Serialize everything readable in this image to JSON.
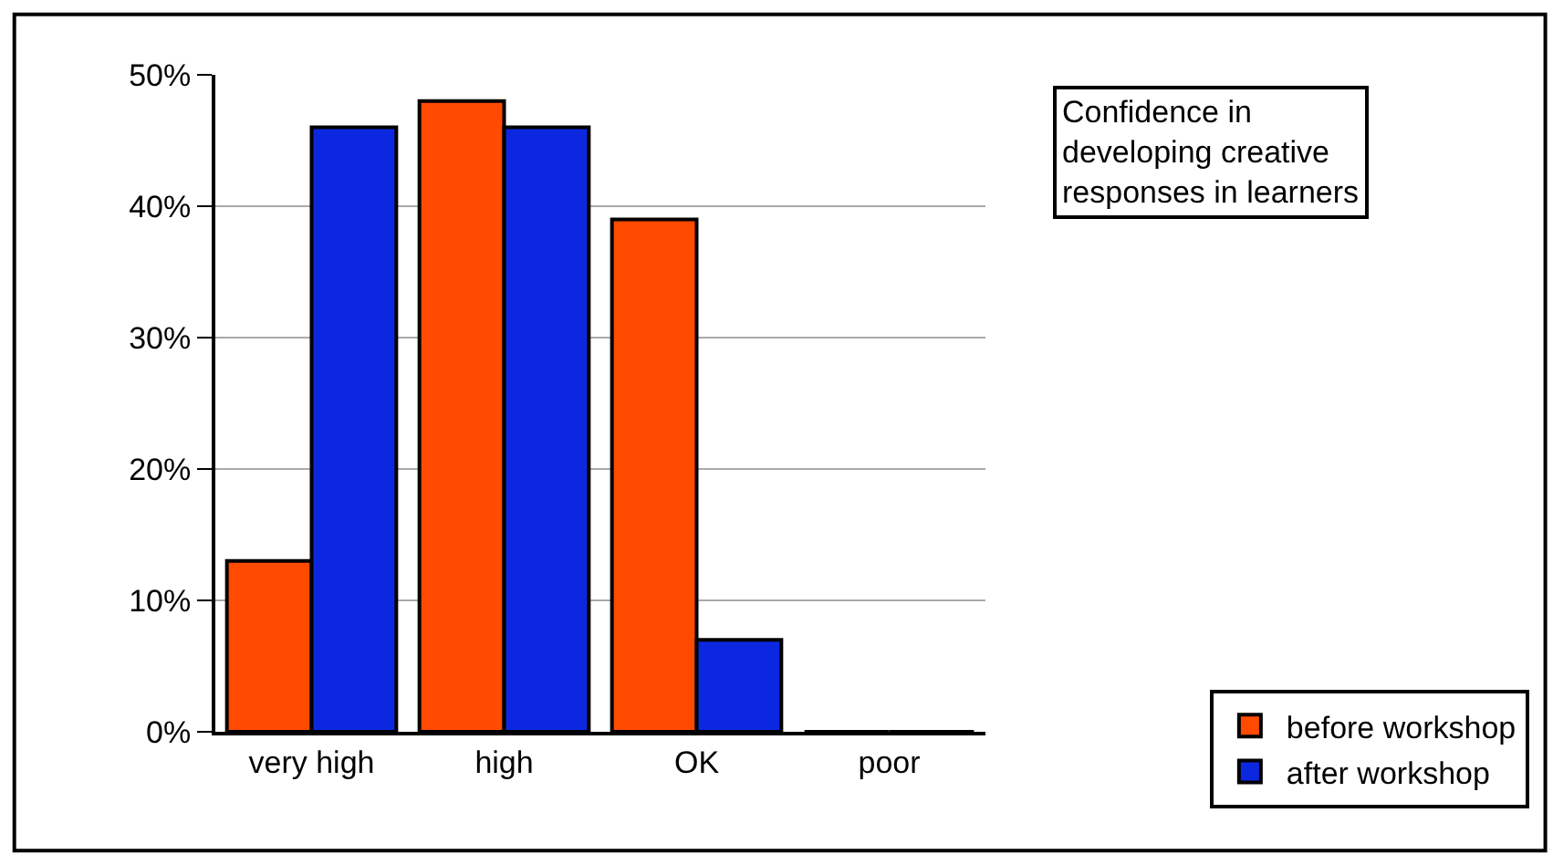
{
  "chart_data": {
    "type": "bar",
    "title": "Confidence in developing creative responses in learners",
    "categories": [
      "very high",
      "high",
      "OK",
      "poor"
    ],
    "series": [
      {
        "name": "before workshop",
        "color": "#ff4a00",
        "values": [
          13,
          48,
          39,
          0
        ]
      },
      {
        "name": "after workshop",
        "color": "#0b28e0",
        "values": [
          46,
          46,
          7,
          0
        ]
      }
    ],
    "ylim": [
      0,
      50
    ],
    "yticks": [
      {
        "value": 0,
        "label": "0%"
      },
      {
        "value": 10,
        "label": "10%"
      },
      {
        "value": 20,
        "label": "20%"
      },
      {
        "value": 30,
        "label": "30%"
      },
      {
        "value": 40,
        "label": "40%"
      },
      {
        "value": 50,
        "label": "50%"
      }
    ],
    "grid": "y",
    "legend": "bottom right"
  }
}
